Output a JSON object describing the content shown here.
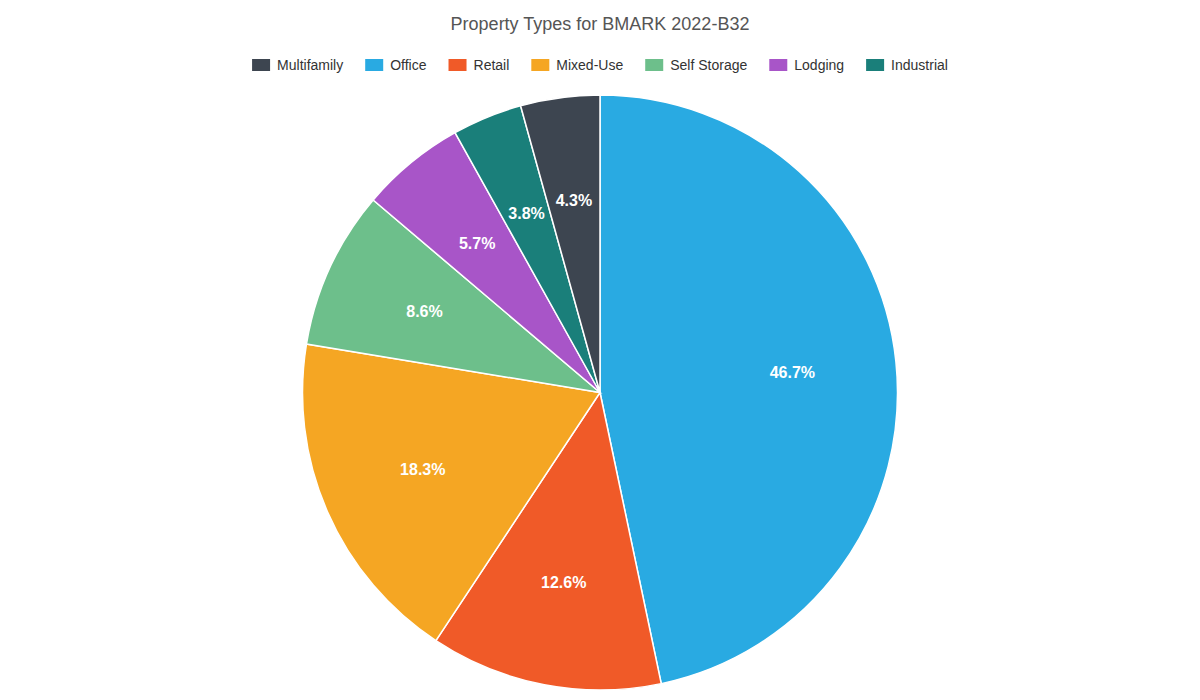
{
  "chart_data": {
    "type": "pie",
    "title": "Property Types for BMARK 2022-B32",
    "categories": [
      "Office",
      "Retail",
      "Mixed-Use",
      "Self Storage",
      "Lodging",
      "Industrial",
      "Multifamily"
    ],
    "values": [
      46.7,
      12.6,
      18.3,
      8.6,
      5.7,
      3.8,
      4.3
    ],
    "value_labels": [
      "46.7%",
      "12.6%",
      "18.3%",
      "8.6%",
      "5.7%",
      "3.8%",
      "4.3%"
    ],
    "colors": [
      "#29aae2",
      "#f05a28",
      "#f5a623",
      "#6dbf8b",
      "#a855c8",
      "#1a7f7a",
      "#3d4550"
    ],
    "data_labels": true,
    "legend": "top",
    "legend_labels": [
      "Multifamily",
      "Office",
      "Retail",
      "Mixed-Use",
      "Self Storage",
      "Lodging",
      "Industrial"
    ],
    "legend_colors": [
      "#3d4550",
      "#29aae2",
      "#f05a28",
      "#f5a623",
      "#6dbf8b",
      "#a855c8",
      "#1a7f7a"
    ]
  }
}
